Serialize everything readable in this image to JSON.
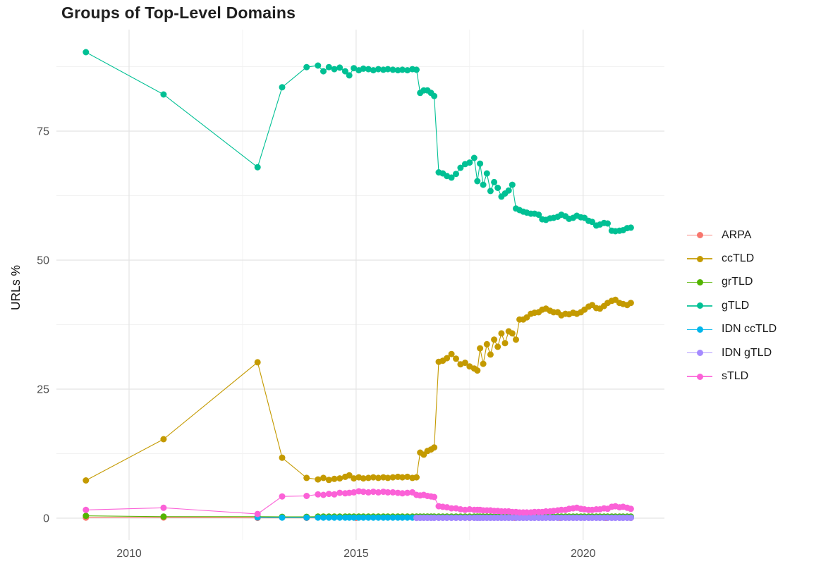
{
  "chart_data": {
    "type": "line",
    "title": "Groups of Top-Level Domains",
    "xlabel": "",
    "ylabel": "URLs %",
    "legend_position": "right",
    "grid": true,
    "axes": {
      "xlim": [
        2008.4,
        2021.79
      ],
      "ylim": [
        -4.24,
        94.67
      ],
      "x_ticks": [
        2010,
        2015,
        2020
      ],
      "x_tick_labels": [
        "2010",
        "2015",
        "2020"
      ],
      "x_minor_ticks": [
        2012.5,
        2017.5
      ],
      "y_ticks": [
        0,
        25,
        50,
        75
      ],
      "y_tick_labels": [
        "0",
        "25",
        "50",
        "75"
      ],
      "y_minor_ticks": [
        12.5,
        37.5,
        62.5,
        87.5
      ]
    },
    "x_shared": [
      2009.05,
      2010.76,
      2012.83,
      2013.37,
      2013.91,
      2014.16,
      2014.28,
      2014.4,
      2014.52,
      2014.64,
      2014.76,
      2014.85,
      2014.95,
      2015.06,
      2015.16,
      2015.27,
      2015.38,
      2015.49,
      2015.6,
      2015.7,
      2015.81,
      2015.92,
      2016.02,
      2016.13,
      2016.24,
      2016.33,
      2016.41,
      2016.49,
      2016.57,
      2016.65,
      2016.72,
      2016.82,
      2016.91,
      2017.0,
      2017.1,
      2017.2,
      2017.3,
      2017.4,
      2017.5,
      2017.6,
      2017.67,
      2017.73,
      2017.8,
      2017.88,
      2017.96,
      2018.04,
      2018.12,
      2018.2,
      2018.28,
      2018.36,
      2018.44,
      2018.52,
      2018.6,
      2018.68,
      2018.76,
      2018.85,
      2018.93,
      2019.02,
      2019.1,
      2019.18,
      2019.27,
      2019.35,
      2019.44,
      2019.52,
      2019.61,
      2019.69,
      2019.78,
      2019.86,
      2019.95,
      2020.03,
      2020.12,
      2020.2,
      2020.29,
      2020.37,
      2020.46,
      2020.54,
      2020.63,
      2020.71,
      2020.8,
      2020.88,
      2020.97,
      2021.05
    ],
    "series": [
      {
        "name": "ARPA",
        "color": "#F8766D",
        "x": [
          2009.05,
          2010.76,
          2012.83,
          2013.91,
          2015.0,
          2016.33,
          2017.5,
          2018.5,
          2019.5,
          2020.5,
          2021.05
        ],
        "y": [
          0.1,
          0.12,
          0.05,
          0.05,
          0.05,
          0.05,
          0.05,
          0.05,
          0.05,
          0.05,
          0.05
        ]
      },
      {
        "name": "ccTLD",
        "color": "#C49A00",
        "x_shared_from": 0,
        "y": [
          7.3,
          15.3,
          30.2,
          11.7,
          7.8,
          7.5,
          7.8,
          7.4,
          7.6,
          7.7,
          8.0,
          8.3,
          7.7,
          7.9,
          7.7,
          7.8,
          7.9,
          7.8,
          7.9,
          7.8,
          7.9,
          8.0,
          7.9,
          8.0,
          7.8,
          7.9,
          12.7,
          12.3,
          13.0,
          13.3,
          13.7,
          30.3,
          30.5,
          31.0,
          31.8,
          30.9,
          29.8,
          30.1,
          29.4,
          29.0,
          28.6,
          32.9,
          29.9,
          33.7,
          31.7,
          34.6,
          33.2,
          35.8,
          33.9,
          36.2,
          35.8,
          34.6,
          38.5,
          38.5,
          38.9,
          39.6,
          39.8,
          39.9,
          40.4,
          40.6,
          40.2,
          39.9,
          39.9,
          39.3,
          39.6,
          39.5,
          39.8,
          39.6,
          39.9,
          40.4,
          41.0,
          41.3,
          40.7,
          40.6,
          41.1,
          41.7,
          42.1,
          42.3,
          41.7,
          41.5,
          41.3,
          41.7
        ]
      },
      {
        "name": "grTLD",
        "color": "#53B400",
        "x_shared_from": 0,
        "y_head": [
          0.45,
          0.3,
          0.3,
          0.25,
          0.25
        ],
        "y_const": 0.3
      },
      {
        "name": "gTLD",
        "color": "#00C094",
        "x_shared_from": 0,
        "y": [
          90.3,
          82.1,
          68.0,
          83.5,
          87.4,
          87.7,
          86.6,
          87.4,
          87.0,
          87.3,
          86.6,
          85.8,
          87.2,
          86.8,
          87.1,
          87.0,
          86.8,
          87.0,
          86.9,
          87.0,
          86.9,
          86.8,
          86.9,
          86.8,
          87.0,
          86.9,
          82.4,
          82.9,
          82.9,
          82.4,
          81.8,
          67.0,
          66.8,
          66.3,
          66.0,
          66.7,
          67.9,
          68.6,
          68.9,
          69.8,
          65.3,
          68.7,
          64.6,
          66.8,
          63.4,
          65.1,
          64.0,
          62.3,
          62.9,
          63.5,
          64.6,
          60.0,
          59.7,
          59.4,
          59.2,
          59.0,
          59.0,
          58.8,
          57.9,
          57.8,
          58.1,
          58.2,
          58.4,
          58.8,
          58.5,
          58.0,
          58.2,
          58.6,
          58.3,
          58.2,
          57.6,
          57.4,
          56.7,
          56.9,
          57.2,
          57.1,
          55.7,
          55.6,
          55.7,
          55.8,
          56.2,
          56.3
        ]
      },
      {
        "name": "IDN ccTLD",
        "color": "#00B6EB",
        "x_shared_from": 2,
        "y_head": [
          0.15
        ],
        "y_const": 0.1
      },
      {
        "name": "IDN gTLD",
        "color": "#A58AFF",
        "x_shared_from": 25,
        "y_const": 0.05
      },
      {
        "name": "sTLD",
        "color": "#FB61D7",
        "x_shared_from": 0,
        "y": [
          1.6,
          2.0,
          0.8,
          4.2,
          4.3,
          4.6,
          4.5,
          4.7,
          4.6,
          4.9,
          4.8,
          4.9,
          5.0,
          5.2,
          5.1,
          5.0,
          5.1,
          5.0,
          5.1,
          5.0,
          5.0,
          4.9,
          4.8,
          4.9,
          5.0,
          4.5,
          4.4,
          4.5,
          4.3,
          4.2,
          4.1,
          2.3,
          2.2,
          2.1,
          1.9,
          1.9,
          1.7,
          1.6,
          1.7,
          1.6,
          1.6,
          1.6,
          1.5,
          1.5,
          1.5,
          1.4,
          1.4,
          1.3,
          1.3,
          1.3,
          1.2,
          1.2,
          1.1,
          1.1,
          1.1,
          1.1,
          1.2,
          1.2,
          1.2,
          1.3,
          1.3,
          1.4,
          1.5,
          1.6,
          1.6,
          1.8,
          1.9,
          2.0,
          1.8,
          1.7,
          1.6,
          1.6,
          1.7,
          1.7,
          1.9,
          1.8,
          2.2,
          2.3,
          2.1,
          2.2,
          2.0,
          1.8
        ]
      }
    ]
  }
}
